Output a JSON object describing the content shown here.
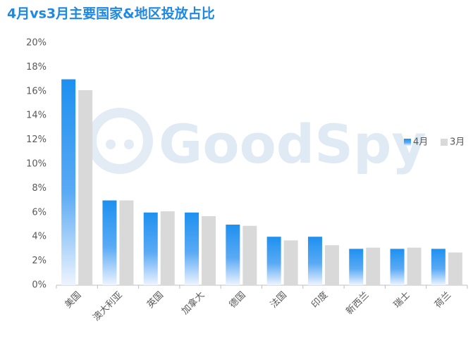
{
  "chart_data": {
    "type": "bar",
    "title": "4月vs3月主要国家&地区投放占比",
    "watermark": "GoodSpy",
    "categories": [
      "美国",
      "澳大利亚",
      "英国",
      "加拿大",
      "德国",
      "法国",
      "印度",
      "新西兰",
      "瑞士",
      "荷兰"
    ],
    "series": [
      {
        "name": "4月",
        "color": "#1e90f0",
        "values": [
          17,
          7,
          6,
          6,
          5,
          4,
          4,
          3,
          3,
          3
        ]
      },
      {
        "name": "3月",
        "color": "#d9d9d9",
        "values": [
          16.1,
          7,
          6.1,
          5.7,
          4.9,
          3.7,
          3.3,
          3.1,
          3.1,
          2.7
        ]
      }
    ],
    "ylim": [
      0,
      20
    ],
    "yticks": [
      {
        "value": 0,
        "label": "0%"
      },
      {
        "value": 2,
        "label": "2%"
      },
      {
        "value": 4,
        "label": "4%"
      },
      {
        "value": 6,
        "label": "6%"
      },
      {
        "value": 8,
        "label": "8%"
      },
      {
        "value": 10,
        "label": "10%"
      },
      {
        "value": 12,
        "label": "12%"
      },
      {
        "value": 14,
        "label": "14%"
      },
      {
        "value": 16,
        "label": "16%"
      },
      {
        "value": 18,
        "label": "18%"
      },
      {
        "value": 20,
        "label": "20%"
      }
    ],
    "grid": false,
    "legend": "right"
  }
}
